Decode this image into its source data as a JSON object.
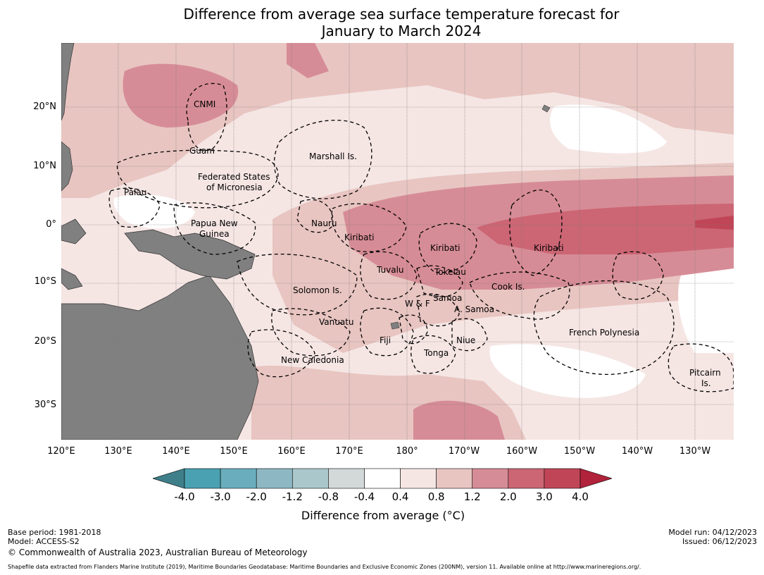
{
  "title": {
    "line1": "Difference from average sea surface temperature forecast for",
    "line2": "January to March 2024"
  },
  "axes": {
    "lat_labels": [
      "20°N",
      "10°N",
      "0°",
      "10°S",
      "20°S",
      "30°S"
    ],
    "lon_labels": [
      "120°E",
      "130°E",
      "140°E",
      "150°E",
      "160°E",
      "170°E",
      "180°",
      "170°W",
      "160°W",
      "150°W",
      "140°W",
      "130°W"
    ]
  },
  "regions": {
    "cnmi": "CNMI",
    "guam": "Guam",
    "marshall": "Marshall Is.",
    "fsm1": "Federated States",
    "fsm2": "of Micronesia",
    "palau": "Palau",
    "png1": "Papua New",
    "png2": "Guinea",
    "nauru": "Nauru",
    "kiribati_w": "Kiribati",
    "kiribati_c": "Kiribati",
    "kiribati_e": "Kiribati",
    "tuvalu": "Tuvalu",
    "tokelau": "Tokelau",
    "cook": "Cook Is.",
    "solomon": "Solomon Is.",
    "samoa": "Samoa",
    "wf": "W & F",
    "asamoa": "A. Samoa",
    "vanuatu": "Vanuatu",
    "fiji": "Fiji",
    "niue": "Niue",
    "tonga": "Tonga",
    "fp": "French Polynesia",
    "newcal": "New Caledonia",
    "pitcairn1": "Pitcairn",
    "pitcairn2": "Is."
  },
  "colorbar": {
    "ticks": [
      "-4.0",
      "-3.0",
      "-2.0",
      "-1.2",
      "-0.8",
      "-0.4",
      "0.4",
      "0.8",
      "1.2",
      "2.0",
      "3.0",
      "4.0"
    ],
    "colors": [
      "#3e7f8a",
      "#4aa1b2",
      "#6aaebd",
      "#8db8c3",
      "#aac8cc",
      "#d2d9d8",
      "#ffffff",
      "#f5e6e4",
      "#e8c5c1",
      "#d68c96",
      "#cc6674",
      "#c04657",
      "#b1223b"
    ],
    "label": "Difference from average (°C)"
  },
  "footer": {
    "base_period": "Base period: 1981-2018",
    "model": "Model: ACCESS-S2",
    "copyright": "© Commonwealth of Australia 2023, Australian Bureau of Meteorology",
    "model_run": "Model run: 04/12/2023",
    "issued": "Issued: 06/12/2023",
    "source": "Shapefile data extracted from Flanders Marine Institute (2019), Maritime Boundaries Geodatabase: Maritime Boundaries and Exclusive Economic Zones (200NM), version 11. Available online at http://www.marineregions.org/."
  }
}
